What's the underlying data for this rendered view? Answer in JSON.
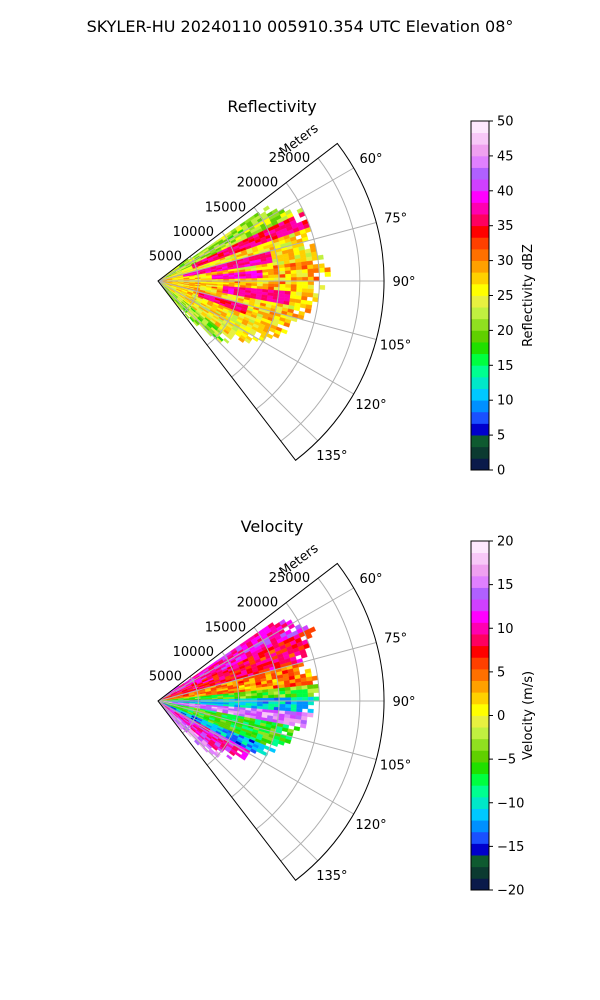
{
  "figure": {
    "suptitle": "SKYLER-HU  20240110  005910.354 UTC Elevation 08°"
  },
  "chart_data": [
    {
      "type": "heatmap",
      "subtype": "polar-sector",
      "title": "Reflectivity",
      "radial_label": "Meters",
      "radial_ticks": [
        5000,
        10000,
        15000,
        20000,
        25000
      ],
      "radial_tick_labels": [
        "5000",
        "10000",
        "15000",
        "20000",
        "25000"
      ],
      "radial_max": 28000,
      "azimuth_range_deg": [
        52.5,
        142.5
      ],
      "azimuth_ticks": [
        60,
        75,
        90,
        105,
        120,
        135
      ],
      "azimuth_tick_labels": [
        "60°",
        "75°",
        "90°",
        "105°",
        "120°",
        "135°"
      ],
      "grid": true,
      "colorbar": {
        "label": "Reflectivity dBZ",
        "min": 0,
        "max": 50,
        "ticks": [
          0,
          5,
          10,
          15,
          20,
          25,
          30,
          35,
          40,
          45,
          50
        ],
        "tick_labels": [
          "0",
          "5",
          "10",
          "15",
          "20",
          "25",
          "30",
          "35",
          "40",
          "45",
          "50"
        ],
        "colors": [
          "#0a1a4a",
          "#0b3a30",
          "#0e5a30",
          "#0000cc",
          "#1a50ff",
          "#0090ff",
          "#00c8ff",
          "#00e8c8",
          "#00ff90",
          "#00ff40",
          "#20e000",
          "#60d000",
          "#90e020",
          "#c0f040",
          "#e8f040",
          "#ffff00",
          "#ffd000",
          "#ffa000",
          "#ff7000",
          "#ff4000",
          "#ff0000",
          "#ff0060",
          "#ff00b0",
          "#ff00ff",
          "#d040ff",
          "#b060ff",
          "#e080ff",
          "#f0a0f0",
          "#f8c8f8",
          "#fde8fd"
        ]
      },
      "field": {
        "base": [
          22,
          26,
          28,
          27,
          26,
          21
        ],
        "streaks": [
          {
            "az": 68,
            "r0": 4000,
            "r1": 20000,
            "value": 36,
            "width": 3
          },
          {
            "az": 78,
            "r0": 3000,
            "r1": 14000,
            "value": 37,
            "width": 3
          },
          {
            "az": 86,
            "r0": 6000,
            "r1": 13000,
            "value": 38,
            "width": 2
          },
          {
            "az": 98,
            "r0": 8000,
            "r1": 16000,
            "value": 37,
            "width": 3
          },
          {
            "az": 108,
            "r0": 5000,
            "r1": 11000,
            "value": 36,
            "width": 3
          }
        ],
        "edge_az": [
          [
            55,
            16000
          ],
          [
            65,
            20000
          ],
          [
            75,
            19000
          ],
          [
            85,
            21000
          ],
          [
            95,
            20000
          ],
          [
            105,
            18000
          ],
          [
            115,
            16000
          ],
          [
            125,
            13000
          ],
          [
            135,
            10000
          ],
          [
            142,
            4000
          ]
        ]
      }
    },
    {
      "type": "heatmap",
      "subtype": "polar-sector",
      "title": "Velocity",
      "radial_label": "Meters",
      "radial_ticks": [
        5000,
        10000,
        15000,
        20000,
        25000
      ],
      "radial_tick_labels": [
        "5000",
        "10000",
        "15000",
        "20000",
        "25000"
      ],
      "radial_max": 28000,
      "azimuth_range_deg": [
        52.5,
        142.5
      ],
      "azimuth_ticks": [
        60,
        75,
        90,
        105,
        120,
        135
      ],
      "azimuth_tick_labels": [
        "60°",
        "75°",
        "90°",
        "105°",
        "120°",
        "135°"
      ],
      "grid": true,
      "colorbar": {
        "label": "Velocity (m/s)",
        "min": -20,
        "max": 20,
        "ticks": [
          -20,
          -15,
          -10,
          -5,
          0,
          5,
          10,
          15,
          20
        ],
        "tick_labels": [
          "−20",
          "−15",
          "−10",
          "−5",
          "0",
          "5",
          "10",
          "15",
          "20"
        ],
        "colors": [
          "#0a1a4a",
          "#0b3a30",
          "#0e5a30",
          "#0000cc",
          "#1a50ff",
          "#0090ff",
          "#00c8ff",
          "#00e8c8",
          "#00ff90",
          "#00ff40",
          "#20e000",
          "#60d000",
          "#90e020",
          "#c0f040",
          "#e8f040",
          "#ffff00",
          "#ffd000",
          "#ffa000",
          "#ff7000",
          "#ff4000",
          "#ff0000",
          "#ff0060",
          "#ff00b0",
          "#ff00ff",
          "#d040ff",
          "#b060ff",
          "#e080ff",
          "#f0a0f0",
          "#f8c8f8",
          "#fde8fd"
        ]
      },
      "field": {
        "sectors": [
          {
            "az0": 52.5,
            "az1": 65,
            "value": 11
          },
          {
            "az0": 65,
            "az1": 75,
            "value": 8
          },
          {
            "az0": 75,
            "az1": 84,
            "value": 4
          },
          {
            "az0": 84,
            "az1": 88,
            "value": -5
          },
          {
            "az0": 88,
            "az1": 94,
            "value": -11
          },
          {
            "az0": 94,
            "az1": 100,
            "value": 15
          },
          {
            "az0": 100,
            "az1": 112,
            "value": -6
          },
          {
            "az0": 112,
            "az1": 118,
            "value": -12
          },
          {
            "az0": 118,
            "az1": 130,
            "value": 11
          },
          {
            "az0": 130,
            "az1": 142.5,
            "value": 15
          }
        ],
        "edge_az": [
          [
            55,
            17000
          ],
          [
            65,
            21000
          ],
          [
            75,
            18000
          ],
          [
            85,
            20000
          ],
          [
            95,
            19000
          ],
          [
            105,
            17000
          ],
          [
            115,
            15000
          ],
          [
            125,
            12000
          ],
          [
            135,
            9000
          ],
          [
            142,
            3000
          ]
        ]
      }
    }
  ]
}
